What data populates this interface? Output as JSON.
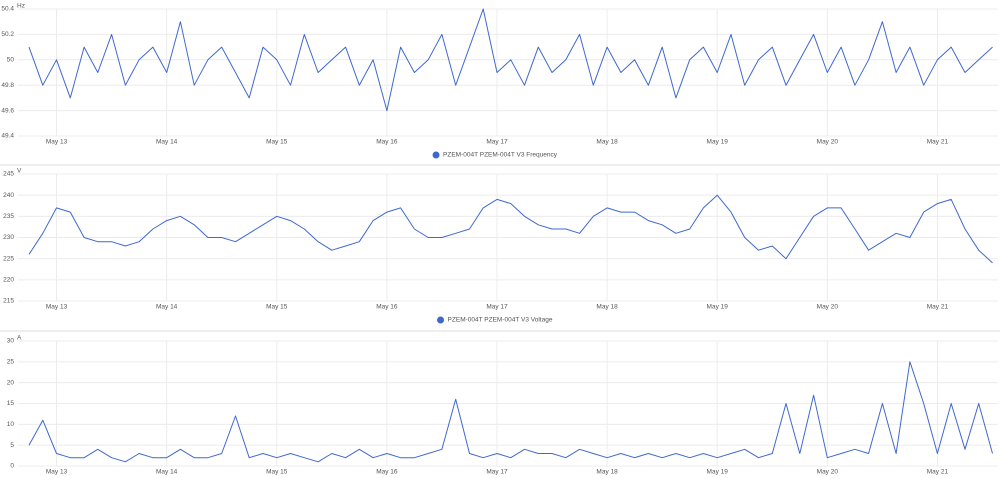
{
  "chart_data": [
    {
      "type": "line",
      "y_label": "Hz",
      "x": [
        12.75,
        12.875,
        13,
        13.125,
        13.25,
        13.375,
        13.5,
        13.625,
        13.75,
        13.875,
        14,
        14.125,
        14.25,
        14.375,
        14.5,
        14.625,
        14.75,
        14.875,
        15,
        15.125,
        15.25,
        15.375,
        15.5,
        15.625,
        15.75,
        15.875,
        16,
        16.125,
        16.25,
        16.375,
        16.5,
        16.625,
        16.75,
        16.875,
        17,
        17.125,
        17.25,
        17.375,
        17.5,
        17.625,
        17.75,
        17.875,
        18,
        18.125,
        18.25,
        18.375,
        18.5,
        18.625,
        18.75,
        18.875,
        19,
        19.125,
        19.25,
        19.375,
        19.5,
        19.625,
        19.75,
        19.875,
        20,
        20.125,
        20.25,
        20.375,
        20.5,
        20.625,
        20.75,
        20.875,
        21,
        21.125,
        21.25,
        21.375,
        21.5
      ],
      "series": [
        {
          "name": "PZEM-004T PZEM-004T V3 Frequency",
          "color": "#3f68cf",
          "values": [
            50.1,
            49.8,
            50,
            49.7,
            50.1,
            49.9,
            50.2,
            49.8,
            50,
            50.1,
            49.9,
            50.3,
            49.8,
            50,
            50.1,
            49.9,
            49.7,
            50.1,
            50,
            49.8,
            50.2,
            49.9,
            50,
            50.1,
            49.8,
            50,
            49.6,
            50.1,
            49.9,
            50,
            50.2,
            49.8,
            50.1,
            50.4,
            49.9,
            50,
            49.8,
            50.1,
            49.9,
            50,
            50.2,
            49.8,
            50.1,
            49.9,
            50,
            49.8,
            50.1,
            49.7,
            50,
            50.1,
            49.9,
            50.2,
            49.8,
            50,
            50.1,
            49.8,
            50,
            50.2,
            49.9,
            50.1,
            49.8,
            50,
            50.3,
            49.9,
            50.1,
            49.8,
            50,
            50.1,
            49.9,
            50,
            50.1
          ]
        }
      ],
      "xlim": [
        12.65,
        21.55
      ],
      "xticks": [
        {
          "value": 13,
          "label": "May 13"
        },
        {
          "value": 14,
          "label": "May 14"
        },
        {
          "value": 15,
          "label": "May 15"
        },
        {
          "value": 16,
          "label": "May 16"
        },
        {
          "value": 17,
          "label": "May 17"
        },
        {
          "value": 18,
          "label": "May 18"
        },
        {
          "value": 19,
          "label": "May 19"
        },
        {
          "value": 20,
          "label": "May 20"
        },
        {
          "value": 21,
          "label": "May 21"
        }
      ],
      "ylim": [
        49.4,
        50.4
      ],
      "yticks": [
        49.4,
        49.6,
        49.8,
        50,
        50.2,
        50.4
      ],
      "grid": true,
      "legend": "bottom"
    },
    {
      "type": "line",
      "y_label": "V",
      "x": [
        12.75,
        12.875,
        13,
        13.125,
        13.25,
        13.375,
        13.5,
        13.625,
        13.75,
        13.875,
        14,
        14.125,
        14.25,
        14.375,
        14.5,
        14.625,
        14.75,
        14.875,
        15,
        15.125,
        15.25,
        15.375,
        15.5,
        15.625,
        15.75,
        15.875,
        16,
        16.125,
        16.25,
        16.375,
        16.5,
        16.625,
        16.75,
        16.875,
        17,
        17.125,
        17.25,
        17.375,
        17.5,
        17.625,
        17.75,
        17.875,
        18,
        18.125,
        18.25,
        18.375,
        18.5,
        18.625,
        18.75,
        18.875,
        19,
        19.125,
        19.25,
        19.375,
        19.5,
        19.625,
        19.75,
        19.875,
        20,
        20.125,
        20.25,
        20.375,
        20.5,
        20.625,
        20.75,
        20.875,
        21,
        21.125,
        21.25,
        21.375,
        21.5
      ],
      "series": [
        {
          "name": "PZEM-004T PZEM-004T V3 Voltage",
          "color": "#3f68cf",
          "values": [
            226,
            231,
            237,
            236,
            230,
            229,
            229,
            228,
            229,
            232,
            234,
            235,
            233,
            230,
            230,
            229,
            231,
            233,
            235,
            234,
            232,
            229,
            227,
            228,
            229,
            234,
            236,
            237,
            232,
            230,
            230,
            231,
            232,
            237,
            239,
            238,
            235,
            233,
            232,
            232,
            231,
            235,
            237,
            236,
            236,
            234,
            233,
            231,
            232,
            237,
            240,
            236,
            230,
            227,
            228,
            225,
            230,
            235,
            237,
            237,
            232,
            227,
            229,
            231,
            230,
            236,
            238,
            239,
            232,
            227,
            224
          ]
        }
      ],
      "xlim": [
        12.65,
        21.55
      ],
      "xticks": [
        {
          "value": 13,
          "label": "May 13"
        },
        {
          "value": 14,
          "label": "May 14"
        },
        {
          "value": 15,
          "label": "May 15"
        },
        {
          "value": 16,
          "label": "May 16"
        },
        {
          "value": 17,
          "label": "May 17"
        },
        {
          "value": 18,
          "label": "May 18"
        },
        {
          "value": 19,
          "label": "May 19"
        },
        {
          "value": 20,
          "label": "May 20"
        },
        {
          "value": 21,
          "label": "May 21"
        }
      ],
      "ylim": [
        215,
        245
      ],
      "yticks": [
        215,
        220,
        225,
        230,
        235,
        240,
        245
      ],
      "grid": true,
      "legend": "bottom"
    },
    {
      "type": "line",
      "y_label": "A",
      "x": [
        12.75,
        12.875,
        13,
        13.125,
        13.25,
        13.375,
        13.5,
        13.625,
        13.75,
        13.875,
        14,
        14.125,
        14.25,
        14.375,
        14.5,
        14.625,
        14.75,
        14.875,
        15,
        15.125,
        15.25,
        15.375,
        15.5,
        15.625,
        15.75,
        15.875,
        16,
        16.125,
        16.25,
        16.375,
        16.5,
        16.625,
        16.75,
        16.875,
        17,
        17.125,
        17.25,
        17.375,
        17.5,
        17.625,
        17.75,
        17.875,
        18,
        18.125,
        18.25,
        18.375,
        18.5,
        18.625,
        18.75,
        18.875,
        19,
        19.125,
        19.25,
        19.375,
        19.5,
        19.625,
        19.75,
        19.875,
        20,
        20.125,
        20.25,
        20.375,
        20.5,
        20.625,
        20.75,
        20.875,
        21,
        21.125,
        21.25,
        21.375,
        21.5
      ],
      "series": [
        {
          "color": "#3f68cf",
          "values": [
            5,
            11,
            3,
            2,
            2,
            4,
            2,
            1,
            3,
            2,
            2,
            4,
            2,
            2,
            3,
            12,
            2,
            3,
            2,
            3,
            2,
            1,
            3,
            2,
            4,
            2,
            3,
            2,
            2,
            3,
            4,
            16,
            3,
            2,
            3,
            2,
            4,
            3,
            3,
            2,
            4,
            3,
            2,
            3,
            2,
            3,
            2,
            3,
            2,
            3,
            2,
            3,
            4,
            2,
            3,
            15,
            3,
            17,
            2,
            3,
            4,
            3,
            15,
            3,
            25,
            15,
            3,
            15,
            4,
            15,
            3
          ]
        }
      ],
      "xlim": [
        12.65,
        21.55
      ],
      "xticks": [
        {
          "value": 13,
          "label": "May 13"
        },
        {
          "value": 14,
          "label": "May 14"
        },
        {
          "value": 15,
          "label": "May 15"
        },
        {
          "value": 16,
          "label": "May 16"
        },
        {
          "value": 17,
          "label": "May 17"
        },
        {
          "value": 18,
          "label": "May 18"
        },
        {
          "value": 19,
          "label": "May 19"
        },
        {
          "value": 20,
          "label": "May 20"
        },
        {
          "value": 21,
          "label": "May 21"
        }
      ],
      "ylim": [
        0,
        30
      ],
      "yticks": [
        0,
        5,
        10,
        15,
        20,
        25,
        30
      ],
      "grid": true
    }
  ]
}
